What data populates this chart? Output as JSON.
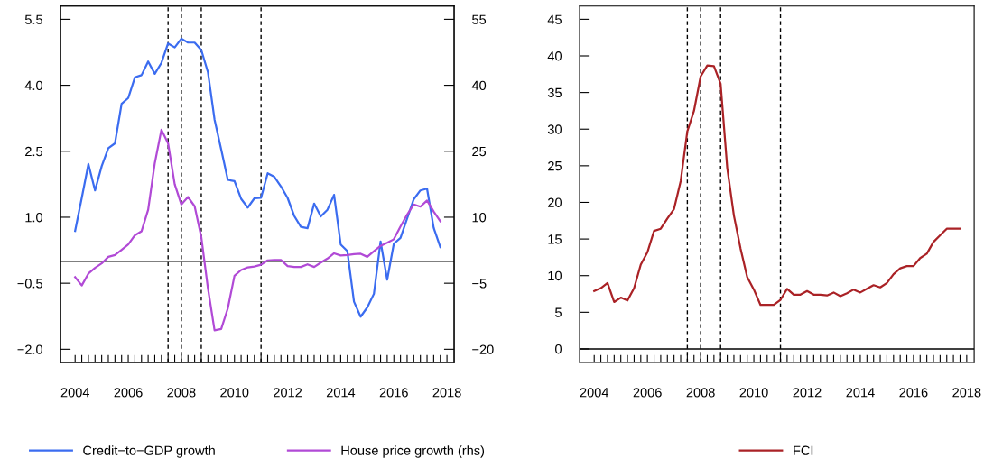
{
  "chart_data": [
    {
      "type": "line",
      "x": [
        2004,
        2004.25,
        2004.5,
        2004.75,
        2005,
        2005.25,
        2005.5,
        2005.75,
        2006,
        2006.25,
        2006.5,
        2006.75,
        2007,
        2007.25,
        2007.5,
        2007.75,
        2008,
        2008.25,
        2008.5,
        2008.75,
        2009,
        2009.25,
        2009.5,
        2009.75,
        2010,
        2010.25,
        2010.5,
        2010.75,
        2011,
        2011.25,
        2011.5,
        2011.75,
        2012,
        2012.25,
        2012.5,
        2012.75,
        2013,
        2013.25,
        2013.5,
        2013.75,
        2014,
        2014.25,
        2014.5,
        2014.75,
        2015,
        2015.25,
        2015.5,
        2015.75,
        2016,
        2016.25,
        2016.5,
        2016.75,
        2017,
        2017.25,
        2017.5,
        2017.75
      ],
      "series": [
        {
          "name": "Credit−to−GDP growth",
          "color": "#3b6cf0",
          "values": [
            0.69,
            1.44,
            2.21,
            1.61,
            2.16,
            2.57,
            2.68,
            3.58,
            3.71,
            4.18,
            4.23,
            4.54,
            4.26,
            4.51,
            4.95,
            4.86,
            5.06,
            4.97,
            4.97,
            4.8,
            4.3,
            3.22,
            2.54,
            1.85,
            1.82,
            1.42,
            1.22,
            1.43,
            1.44,
            2.0,
            1.92,
            1.7,
            1.44,
            1.03,
            0.78,
            0.75,
            1.31,
            1.02,
            1.17,
            1.51,
            0.38,
            0.23,
            -0.92,
            -1.26,
            -1.05,
            -0.74,
            0.45,
            -0.42,
            0.4,
            0.53,
            0.97,
            1.41,
            1.61,
            1.65,
            0.76,
            0.32
          ]
        },
        {
          "name": "House price growth (rhs)",
          "color": "#b14ad6",
          "axis": "y2",
          "values": [
            -3.6,
            -5.5,
            -2.8,
            -1.5,
            -0.5,
            1.0,
            1.4,
            2.6,
            3.8,
            5.9,
            6.8,
            11.7,
            22.3,
            29.9,
            26.8,
            17.5,
            12.9,
            14.6,
            12.5,
            5.5,
            -6.1,
            -15.7,
            -15.4,
            -10.7,
            -3.3,
            -2.0,
            -1.4,
            -1.2,
            -0.8,
            0.2,
            0.3,
            0.3,
            -1.1,
            -1.3,
            -1.3,
            -0.7,
            -1.3,
            -0.3,
            0.6,
            1.8,
            1.3,
            1.4,
            1.6,
            1.7,
            1.0,
            2.3,
            3.5,
            4.2,
            5.0,
            7.9,
            10.6,
            12.9,
            12.4,
            13.8,
            11.3,
            9.1
          ]
        }
      ],
      "xlim": [
        2003.45,
        2018.27
      ],
      "xticks": [
        2004,
        {
          "value": 2004.25,
          "label": null
        },
        {
          "value": 2004.5,
          "label": null
        },
        {
          "value": 2004.75,
          "label": null
        },
        {
          "value": 2005,
          "label": null
        },
        {
          "value": 2005.25,
          "label": null
        },
        {
          "value": 2005.5,
          "label": null
        },
        {
          "value": 2005.75,
          "label": null
        },
        2006,
        {
          "value": 2006.25,
          "label": null
        },
        {
          "value": 2006.5,
          "label": null
        },
        {
          "value": 2006.75,
          "label": null
        },
        {
          "value": 2007,
          "label": null
        },
        {
          "value": 2007.25,
          "label": null
        },
        {
          "value": 2007.5,
          "label": null
        },
        {
          "value": 2007.75,
          "label": null
        },
        2008,
        {
          "value": 2008.25,
          "label": null
        },
        {
          "value": 2008.5,
          "label": null
        },
        {
          "value": 2008.75,
          "label": null
        },
        {
          "value": 2009,
          "label": null
        },
        {
          "value": 2009.25,
          "label": null
        },
        {
          "value": 2009.5,
          "label": null
        },
        {
          "value": 2009.75,
          "label": null
        },
        2010,
        {
          "value": 2010.25,
          "label": null
        },
        {
          "value": 2010.5,
          "label": null
        },
        {
          "value": 2010.75,
          "label": null
        },
        {
          "value": 2011,
          "label": null
        },
        {
          "value": 2011.25,
          "label": null
        },
        {
          "value": 2011.5,
          "label": null
        },
        {
          "value": 2011.75,
          "label": null
        },
        2012,
        {
          "value": 2012.25,
          "label": null
        },
        {
          "value": 2012.5,
          "label": null
        },
        {
          "value": 2012.75,
          "label": null
        },
        {
          "value": 2013,
          "label": null
        },
        {
          "value": 2013.25,
          "label": null
        },
        {
          "value": 2013.5,
          "label": null
        },
        {
          "value": 2013.75,
          "label": null
        },
        2014,
        {
          "value": 2014.25,
          "label": null
        },
        {
          "value": 2014.5,
          "label": null
        },
        {
          "value": 2014.75,
          "label": null
        },
        {
          "value": 2015,
          "label": null
        },
        {
          "value": 2015.25,
          "label": null
        },
        {
          "value": 2015.5,
          "label": null
        },
        {
          "value": 2015.75,
          "label": null
        },
        2016,
        {
          "value": 2016.25,
          "label": null
        },
        {
          "value": 2016.5,
          "label": null
        },
        {
          "value": 2016.75,
          "label": null
        },
        {
          "value": 2017,
          "label": null
        },
        {
          "value": 2017.25,
          "label": null
        },
        {
          "value": 2017.5,
          "label": null
        },
        {
          "value": 2017.75,
          "label": null
        },
        2018
      ],
      "ylim": [
        -2.3,
        5.8
      ],
      "yticks": [
        {
          "value": -2.0,
          "label": "−2.0"
        },
        {
          "value": -0.5,
          "label": "−0.5"
        },
        {
          "value": 1.0,
          "label": "1.0"
        },
        2.5,
        {
          "value": 4.0,
          "label": "4.0"
        },
        5.5
      ],
      "y2lim": [
        -23,
        58
      ],
      "y2ticks": [
        {
          "value": -20,
          "label": "−20"
        },
        {
          "value": -5,
          "label": "−5"
        },
        10,
        25,
        40,
        55
      ],
      "ref_lines": [
        {
          "axis": "y",
          "value": 0,
          "color": "#000000",
          "line_style": "solid"
        },
        {
          "axis": "x",
          "value": 2007.5,
          "color": "#000000",
          "line_style": "dashed"
        },
        {
          "axis": "x",
          "value": 2008.0,
          "color": "#000000",
          "line_style": "dashed"
        },
        {
          "axis": "x",
          "value": 2008.75,
          "color": "#000000",
          "line_style": "dashed"
        },
        {
          "axis": "x",
          "value": 2011.0,
          "color": "#000000",
          "line_style": "dashed"
        }
      ],
      "legend": "bottom",
      "marker": "none",
      "line_style": "solid"
    },
    {
      "type": "line",
      "x": [
        2004,
        2004.25,
        2004.5,
        2004.75,
        2005,
        2005.25,
        2005.5,
        2005.75,
        2006,
        2006.25,
        2006.5,
        2006.75,
        2007,
        2007.25,
        2007.5,
        2007.75,
        2008,
        2008.25,
        2008.5,
        2008.75,
        2009,
        2009.25,
        2009.5,
        2009.75,
        2010,
        2010.25,
        2010.5,
        2010.75,
        2011,
        2011.25,
        2011.5,
        2011.75,
        2012,
        2012.25,
        2012.5,
        2012.75,
        2013,
        2013.25,
        2013.5,
        2013.75,
        2014,
        2014.25,
        2014.5,
        2014.75,
        2015,
        2015.25,
        2015.5,
        2015.75,
        2016,
        2016.25,
        2016.5,
        2016.75,
        2017,
        2017.25,
        2017.5,
        2017.75
      ],
      "series": [
        {
          "name": "FCI",
          "color": "#aa2226",
          "values": [
            7.9,
            8.3,
            9.0,
            6.4,
            7.0,
            6.6,
            8.3,
            11.5,
            13.2,
            16.1,
            16.4,
            17.8,
            19.1,
            22.9,
            29.7,
            32.5,
            37.2,
            38.7,
            38.6,
            36.2,
            24.7,
            18.2,
            13.7,
            9.8,
            8.1,
            6.0,
            6.0,
            6.0,
            6.7,
            8.2,
            7.4,
            7.4,
            7.9,
            7.4,
            7.4,
            7.3,
            7.7,
            7.2,
            7.6,
            8.1,
            7.7,
            8.2,
            8.7,
            8.4,
            9.0,
            10.2,
            11.0,
            11.3,
            11.3,
            12.4,
            13.0,
            14.6,
            15.5,
            16.4,
            16.4,
            16.4
          ]
        }
      ],
      "xlim": [
        2003.45,
        2018.28
      ],
      "xticks": [
        2004,
        {
          "value": 2004.25,
          "label": null
        },
        {
          "value": 2004.5,
          "label": null
        },
        {
          "value": 2004.75,
          "label": null
        },
        {
          "value": 2005,
          "label": null
        },
        {
          "value": 2005.25,
          "label": null
        },
        {
          "value": 2005.5,
          "label": null
        },
        {
          "value": 2005.75,
          "label": null
        },
        2006,
        {
          "value": 2006.25,
          "label": null
        },
        {
          "value": 2006.5,
          "label": null
        },
        {
          "value": 2006.75,
          "label": null
        },
        {
          "value": 2007,
          "label": null
        },
        {
          "value": 2007.25,
          "label": null
        },
        {
          "value": 2007.5,
          "label": null
        },
        {
          "value": 2007.75,
          "label": null
        },
        2008,
        {
          "value": 2008.25,
          "label": null
        },
        {
          "value": 2008.5,
          "label": null
        },
        {
          "value": 2008.75,
          "label": null
        },
        {
          "value": 2009,
          "label": null
        },
        {
          "value": 2009.25,
          "label": null
        },
        {
          "value": 2009.5,
          "label": null
        },
        {
          "value": 2009.75,
          "label": null
        },
        2010,
        {
          "value": 2010.25,
          "label": null
        },
        {
          "value": 2010.5,
          "label": null
        },
        {
          "value": 2010.75,
          "label": null
        },
        {
          "value": 2011,
          "label": null
        },
        {
          "value": 2011.25,
          "label": null
        },
        {
          "value": 2011.5,
          "label": null
        },
        {
          "value": 2011.75,
          "label": null
        },
        2012,
        {
          "value": 2012.25,
          "label": null
        },
        {
          "value": 2012.5,
          "label": null
        },
        {
          "value": 2012.75,
          "label": null
        },
        {
          "value": 2013,
          "label": null
        },
        {
          "value": 2013.25,
          "label": null
        },
        {
          "value": 2013.5,
          "label": null
        },
        {
          "value": 2013.75,
          "label": null
        },
        2014,
        {
          "value": 2014.25,
          "label": null
        },
        {
          "value": 2014.5,
          "label": null
        },
        {
          "value": 2014.75,
          "label": null
        },
        {
          "value": 2015,
          "label": null
        },
        {
          "value": 2015.25,
          "label": null
        },
        {
          "value": 2015.5,
          "label": null
        },
        {
          "value": 2015.75,
          "label": null
        },
        2016,
        {
          "value": 2016.25,
          "label": null
        },
        {
          "value": 2016.5,
          "label": null
        },
        {
          "value": 2016.75,
          "label": null
        },
        {
          "value": 2017,
          "label": null
        },
        {
          "value": 2017.25,
          "label": null
        },
        {
          "value": 2017.5,
          "label": null
        },
        {
          "value": 2017.75,
          "label": null
        },
        2018
      ],
      "ylim": [
        -1.85,
        46.8
      ],
      "yticks": [
        0,
        5,
        10,
        15,
        20,
        25,
        30,
        35,
        40,
        45
      ],
      "ref_lines": [
        {
          "axis": "y",
          "value": 0,
          "color": "#000000",
          "line_style": "solid"
        },
        {
          "axis": "x",
          "value": 2007.5,
          "color": "#000000",
          "line_style": "dashed"
        },
        {
          "axis": "x",
          "value": 2008.0,
          "color": "#000000",
          "line_style": "dashed"
        },
        {
          "axis": "x",
          "value": 2008.75,
          "color": "#000000",
          "line_style": "dashed"
        },
        {
          "axis": "x",
          "value": 2011.0,
          "color": "#000000",
          "line_style": "dashed"
        }
      ],
      "legend": "bottom",
      "marker": "none",
      "line_style": "solid"
    }
  ]
}
